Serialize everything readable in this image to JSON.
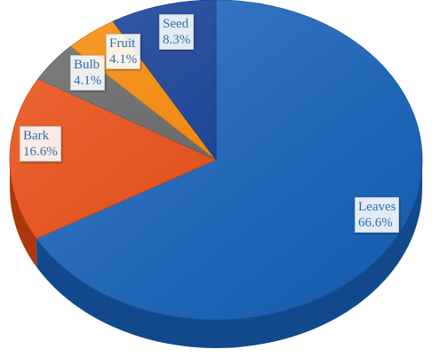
{
  "chart_data": {
    "type": "pie",
    "style": "3d",
    "legend": "none",
    "slices": [
      {
        "label": "Leaves",
        "value": 66.6,
        "value_text": "66.6%",
        "color": "#1766c2"
      },
      {
        "label": "Bark",
        "value": 16.6,
        "value_text": "16.6%",
        "color": "#f04d11"
      },
      {
        "label": "Bulb",
        "value": 4.1,
        "value_text": "4.1%",
        "color": "#666666"
      },
      {
        "label": "Fruit",
        "value": 4.1,
        "value_text": "4.1%",
        "color": "#ff8a00"
      },
      {
        "label": "Seed",
        "value": 8.3,
        "value_text": "8.3%",
        "color": "#0f3c99"
      }
    ]
  }
}
